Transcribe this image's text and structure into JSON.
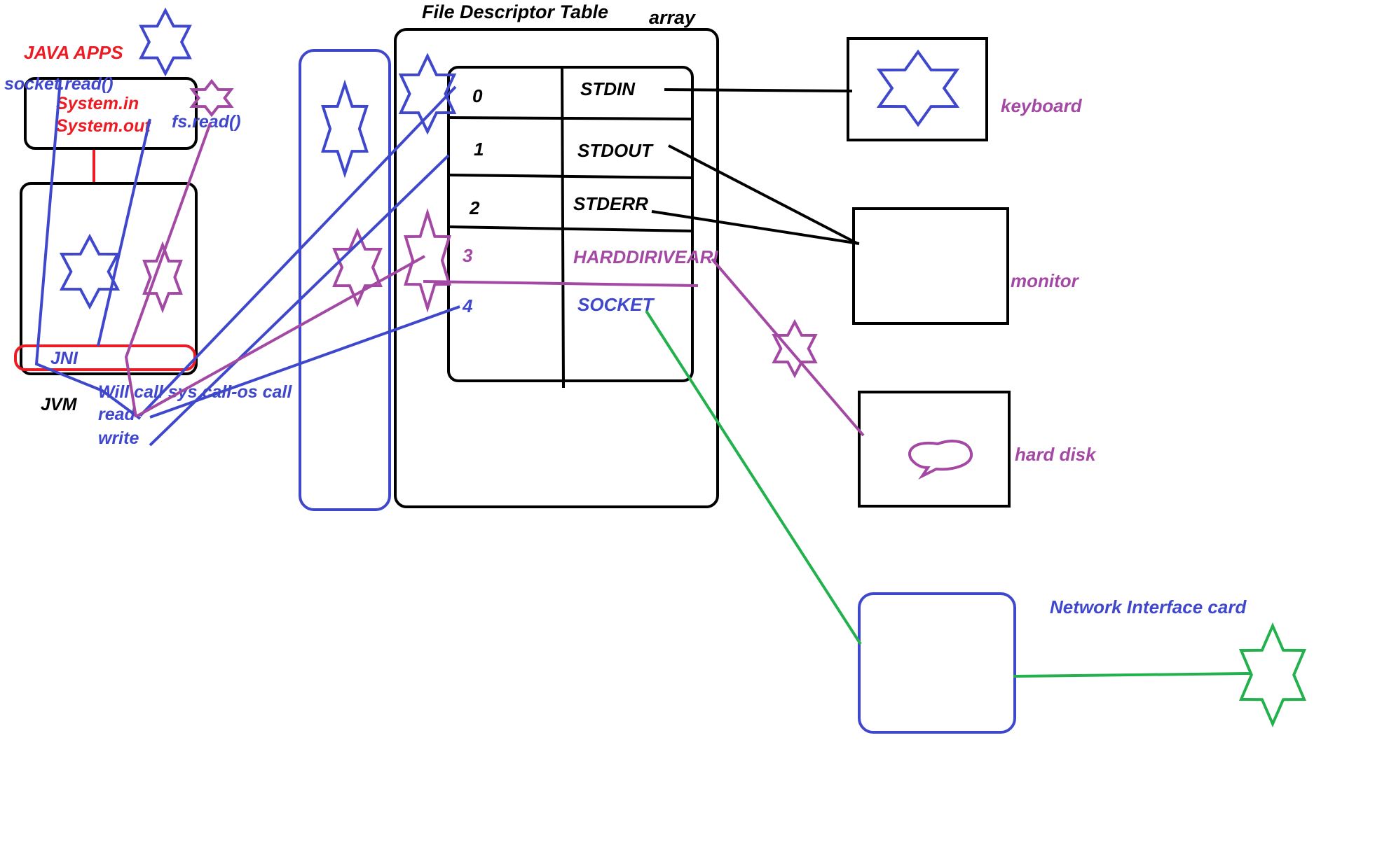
{
  "colors": {
    "black": "#000000",
    "red": "#ed1c24",
    "blue": "#3f48cc",
    "purple": "#a349a4",
    "green": "#22b14c"
  },
  "title": "File Descriptor Table",
  "array_label": "array",
  "java_apps_label": "JAVA APPS",
  "java_apps_calls": {
    "socket_read": "socket.read()",
    "system_in": "System.in",
    "system_out": "System.out",
    "fs_read": "fs.read()"
  },
  "jvm_label": "JVM",
  "jni_label": "JNI",
  "syscall_note": {
    "line1": "Will call sys call-os call",
    "line2": "read",
    "line3": "write"
  },
  "fd_table": {
    "rows": [
      {
        "index": "0",
        "name": "STDIN"
      },
      {
        "index": "1",
        "name": "STDOUT"
      },
      {
        "index": "2",
        "name": "STDERR"
      },
      {
        "index": "3",
        "name": "HARDDIRIVEARI"
      },
      {
        "index": "4",
        "name": "SOCKET"
      }
    ]
  },
  "devices": {
    "keyboard": "keyboard",
    "monitor": "monitor",
    "hard_disk": "hard disk",
    "nic": "Network Interface card"
  },
  "icons": [
    "star-icon",
    "speech-bubble-icon"
  ]
}
